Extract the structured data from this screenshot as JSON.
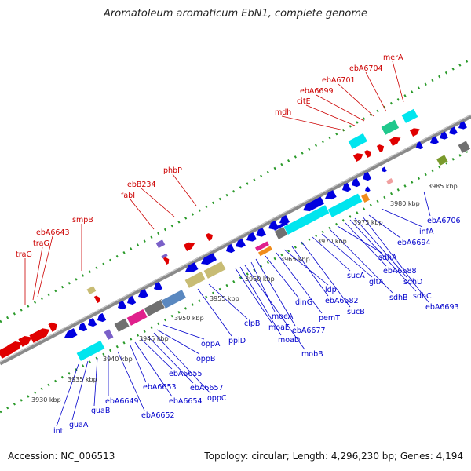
{
  "title": "Aromatoleum aromaticum EbN1, complete genome",
  "footer": {
    "accession": "Accession: NC_006513",
    "summary": "Topology: circular; Length: 4,296,230 bp; Genes: 4,194"
  },
  "colors": {
    "backbone": "#8a8a8a",
    "forward_gene": "#e00000",
    "reverse_gene": "#0000e0",
    "dot_track": "#2a9a2a",
    "forward_label": "#cc0000",
    "reverse_label": "#0000cc",
    "cog_cyan": "#00e5ee",
    "cog_khaki": "#c8bc74",
    "cog_magenta": "#e0208c",
    "cog_steel": "#5a88c0",
    "cog_gray": "#707070",
    "cog_violet": "#7a60c8",
    "cog_orange": "#f08c1c",
    "cog_green": "#20c88c",
    "cog_olive": "#7a9a2c",
    "cog_pink": "#f0a0a0"
  },
  "ticks": [
    "3930 kbp",
    "3935 kbp",
    "3940 kbp",
    "3945 kbp",
    "3950 kbp",
    "3955 kbp",
    "3960 kbp",
    "3965 kbp",
    "3970 kbp",
    "3975 kbp",
    "3980 kbp",
    "3985 kbp"
  ],
  "forward_labels": [
    "traG",
    "traG",
    "ebA6643",
    "smpB",
    "fabI",
    "ebB234",
    "phbP",
    "mdh",
    "citE",
    "ebA6699",
    "ebA6701",
    "ebA6704",
    "merA"
  ],
  "reverse_labels": [
    "int",
    "guaA",
    "guaB",
    "ebA6649",
    "ebA6652",
    "ebA6653",
    "ebA6654",
    "ebA6655",
    "ebA6657",
    "oppC",
    "oppB",
    "oppA",
    "ppiD",
    "clpB",
    "moaE",
    "moaD",
    "mobB",
    "moeA",
    "ebA6677",
    "dinG",
    "pemT",
    "ldp",
    "ebA6682",
    "sucB",
    "sucA",
    "gltA",
    "sdhB",
    "sdhA",
    "ebA6688",
    "sdhC",
    "sdhD",
    "ebA6693",
    "ebA6694",
    "infA",
    "ebA6706"
  ]
}
